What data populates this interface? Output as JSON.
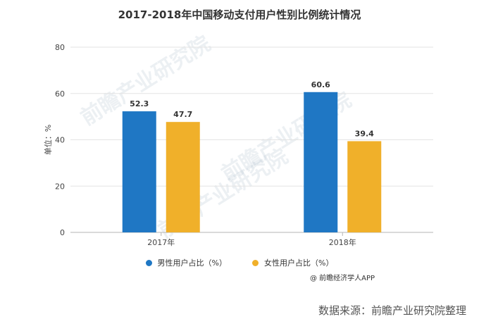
{
  "title": "2017-2018年中国移动支付用户性别比例统计情况",
  "colors": {
    "male": "#1f77c4",
    "female": "#f0b02a"
  },
  "legend": [
    {
      "label": "男性用户占比（%）",
      "color": "#1f77c4",
      "icon": "circle"
    },
    {
      "label": "女性用户占比（%）",
      "color": "#f0b02a",
      "icon": "circle"
    }
  ],
  "credit": "@ 前瞻经济学人APP",
  "source": "数据来源：前瞻产业研究院整理",
  "watermark": "前瞻产业研究院",
  "chart_data": {
    "type": "bar",
    "categories": [
      "2017年",
      "2018年"
    ],
    "series": [
      {
        "name": "男性用户占比（%）",
        "values": [
          52.3,
          60.6
        ]
      },
      {
        "name": "女性用户占比（%）",
        "values": [
          47.7,
          39.4
        ]
      }
    ],
    "ylabel": "单位：%",
    "ylim": [
      0,
      80
    ],
    "yticks": [
      0,
      20,
      40,
      60,
      80
    ],
    "grid": true,
    "legend_position": "bottom"
  }
}
